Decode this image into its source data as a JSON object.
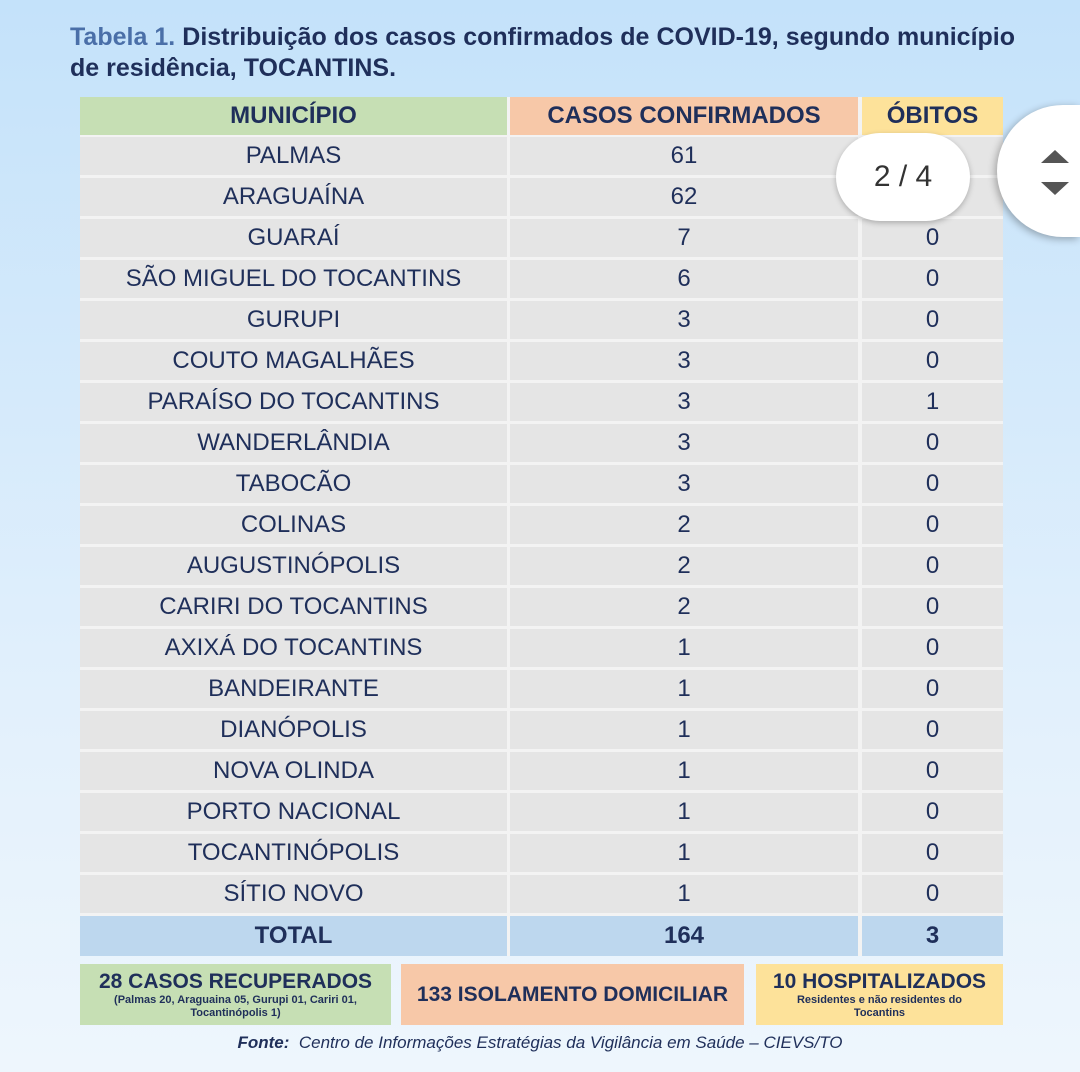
{
  "title": {
    "label": "Tabela 1.",
    "text": "Distribuição dos casos confirmados de COVID-19, segundo município de residência, TOCANTINS."
  },
  "columns": [
    "MUNICÍPIO",
    "CASOS CONFIRMADOS",
    "ÓBITOS"
  ],
  "rows": [
    [
      "PALMAS",
      "61",
      ""
    ],
    [
      "ARAGUAÍNA",
      "62",
      ""
    ],
    [
      "GUARAÍ",
      "7",
      "0"
    ],
    [
      "SÃO MIGUEL DO TOCANTINS",
      "6",
      "0"
    ],
    [
      "GURUPI",
      "3",
      "0"
    ],
    [
      "COUTO MAGALHÃES",
      "3",
      "0"
    ],
    [
      "PARAÍSO DO TOCANTINS",
      "3",
      "1"
    ],
    [
      "WANDERLÂNDIA",
      "3",
      "0"
    ],
    [
      "TABOCÃO",
      "3",
      "0"
    ],
    [
      "COLINAS",
      "2",
      "0"
    ],
    [
      "AUGUSTINÓPOLIS",
      "2",
      "0"
    ],
    [
      "CARIRI DO TOCANTINS",
      "2",
      "0"
    ],
    [
      "AXIXÁ DO TOCANTINS",
      "1",
      "0"
    ],
    [
      "BANDEIRANTE",
      "1",
      "0"
    ],
    [
      "DIANÓPOLIS",
      "1",
      "0"
    ],
    [
      "NOVA OLINDA",
      "1",
      "0"
    ],
    [
      "PORTO NACIONAL",
      "1",
      "0"
    ],
    [
      "TOCANTINÓPOLIS",
      "1",
      "0"
    ],
    [
      "SÍTIO NOVO",
      "1",
      "0"
    ]
  ],
  "total": [
    "TOTAL",
    "164",
    "3"
  ],
  "summary": {
    "recovered": {
      "title": "28 CASOS RECUPERADOS",
      "detail": "(Palmas 20, Araguaina 05, Gurupi 01, Cariri 01, Tocantinópolis 1)",
      "color": "#c6dfb4"
    },
    "isolation": {
      "title": "133 ISOLAMENTO DOMICILIAR",
      "color": "#f7c8a8"
    },
    "hospitalized": {
      "title": "10 HOSPITALIZADOS",
      "detail": "Residentes e não residentes do Tocantins",
      "color": "#fde29a"
    }
  },
  "source": {
    "label": "Fonte:",
    "text": "Centro de Informações Estratégias da Vigilância em Saúde – CIEVS/TO"
  },
  "viewer": {
    "page_indicator": "2 / 4",
    "scroll_icons": [
      "arrow-up-icon",
      "arrow-down-icon"
    ]
  }
}
